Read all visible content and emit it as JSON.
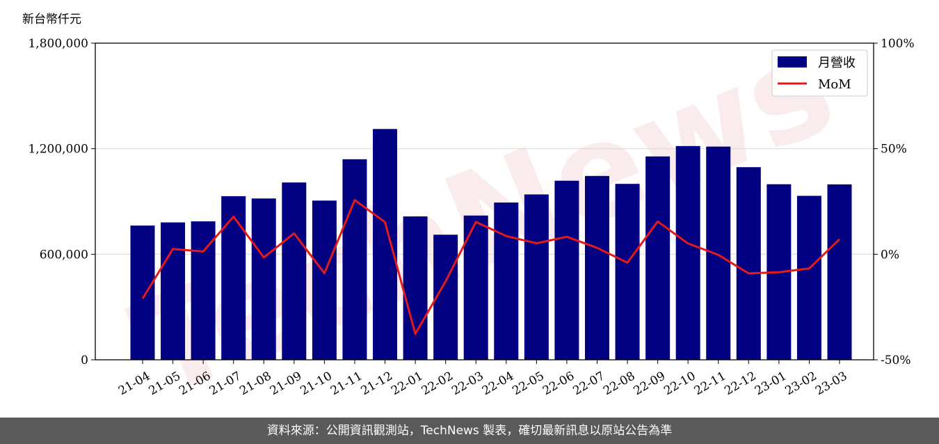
{
  "unit_label": "新台幣仟元",
  "watermark": "TechNews",
  "footer": "資料來源：公開資訊觀測站，TechNews 製表，確切最新訊息以原站公告為準",
  "colors": {
    "bar": "#000080",
    "line": "#e31a1c",
    "footer_bg": "#5a5a5a"
  },
  "chart_data": {
    "type": "bar",
    "categories": [
      "21-04",
      "21-05",
      "21-06",
      "21-07",
      "21-08",
      "21-09",
      "21-10",
      "21-11",
      "21-12",
      "22-01",
      "22-02",
      "22-03",
      "22-04",
      "22-05",
      "22-06",
      "22-07",
      "22-08",
      "22-09",
      "22-10",
      "22-11",
      "22-12",
      "23-01",
      "23-02",
      "23-03"
    ],
    "series": [
      {
        "name": "月營收",
        "axis": "left",
        "type": "bar",
        "values": [
          763000,
          781000,
          787000,
          930000,
          917000,
          1008000,
          905000,
          1140000,
          1312000,
          815000,
          711000,
          820000,
          894000,
          940000,
          1018000,
          1045000,
          1000000,
          1156000,
          1215000,
          1212000,
          1095000,
          998000,
          932000,
          997000
        ]
      },
      {
        "name": "MoM",
        "axis": "right",
        "type": "line",
        "values": [
          -21,
          2.5,
          1.3,
          17.8,
          -1.5,
          9.9,
          -9,
          25.7,
          15.2,
          -37.7,
          -12.8,
          15.3,
          8.6,
          5.2,
          8.3,
          3,
          -4,
          15.5,
          5.1,
          -0.3,
          -9.1,
          -8.5,
          -6.7,
          7.1
        ]
      }
    ],
    "y_left": {
      "range": [
        0,
        1800000
      ],
      "ticks": [
        "0",
        "600,000",
        "1,200,000",
        "1,800,000"
      ],
      "tick_values": [
        0,
        600000,
        1200000,
        1800000
      ]
    },
    "y_right": {
      "range": [
        -50,
        100
      ],
      "ticks": [
        "-50%",
        "0%",
        "50%",
        "100%"
      ],
      "tick_values": [
        -50,
        0,
        50,
        100
      ]
    },
    "grid": "horizontal",
    "legend": "top-right"
  }
}
